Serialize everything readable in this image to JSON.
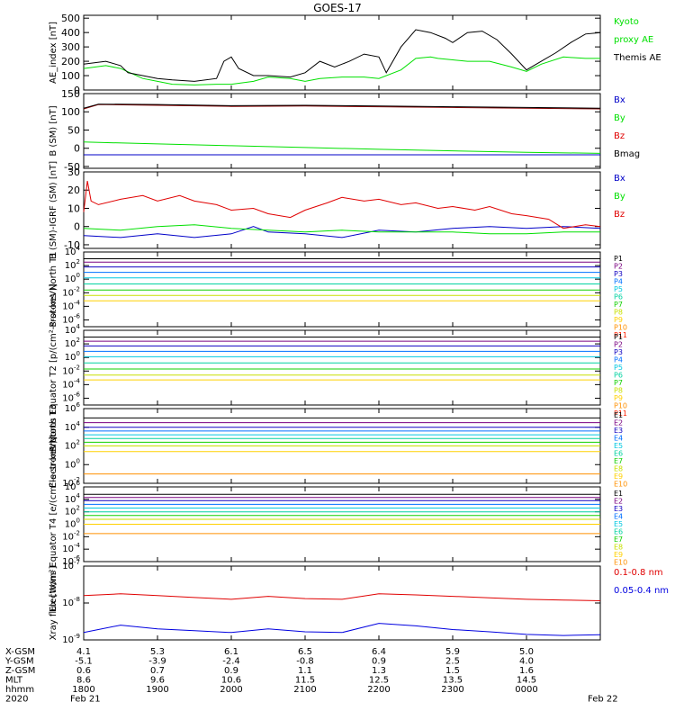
{
  "title": "GOES-17",
  "colors": {
    "black": "#000000",
    "green": "#00e000",
    "blue": "#0000c8",
    "darkred": "#8b0000",
    "red": "#e00000",
    "xray_long": "#e00000",
    "xray_short": "#0000e0",
    "channels": [
      "#000000",
      "#7a0080",
      "#1000c0",
      "#0070ff",
      "#00c8e0",
      "#00d2a0",
      "#10d000",
      "#c8e000",
      "#ffd000",
      "#ff9000",
      "#ff2000",
      "#b00000"
    ]
  },
  "chart_data": [
    {
      "type": "line",
      "ylabel": "AE_index [nT]",
      "ylim": [
        0,
        520
      ],
      "yticks": [
        "0",
        "100",
        "200",
        "300",
        "400",
        "500"
      ],
      "legend": [
        {
          "label": "Kyoto",
          "color": "green"
        },
        {
          "label": "proxy AE",
          "color": "green"
        },
        {
          "label": "Themis AE",
          "color": "black"
        }
      ],
      "series": [
        {
          "name": "Kyoto proxy AE",
          "color": "green",
          "x": [
            0,
            0.3,
            0.5,
            0.8,
            1,
            1.2,
            1.5,
            1.8,
            2,
            2.3,
            2.5,
            2.8,
            3,
            3.2,
            3.5,
            3.8,
            4,
            4.3,
            4.5,
            4.7,
            4.8,
            5,
            5.2,
            5.5,
            5.8,
            6,
            6.2,
            6.5,
            6.8,
            7
          ],
          "values": [
            150,
            170,
            150,
            80,
            60,
            40,
            35,
            40,
            40,
            60,
            90,
            80,
            60,
            80,
            90,
            90,
            80,
            140,
            220,
            230,
            220,
            210,
            200,
            200,
            160,
            130,
            180,
            230,
            220,
            220
          ]
        },
        {
          "name": "Themis AE",
          "color": "black",
          "x": [
            0,
            0.3,
            0.5,
            0.6,
            0.8,
            1,
            1.2,
            1.5,
            1.8,
            1.9,
            2,
            2.1,
            2.3,
            2.5,
            2.8,
            3,
            3.2,
            3.4,
            3.6,
            3.8,
            4,
            4.1,
            4.3,
            4.5,
            4.7,
            4.9,
            5,
            5.2,
            5.4,
            5.6,
            5.8,
            6,
            6.2,
            6.4,
            6.6,
            6.8,
            7
          ],
          "values": [
            180,
            200,
            170,
            120,
            100,
            80,
            70,
            60,
            80,
            200,
            230,
            150,
            100,
            100,
            90,
            120,
            200,
            160,
            200,
            250,
            230,
            120,
            300,
            420,
            400,
            360,
            330,
            400,
            410,
            350,
            250,
            140,
            200,
            260,
            330,
            390,
            400
          ]
        }
      ]
    },
    {
      "type": "line",
      "ylabel": "B (SM) [nT]",
      "ylim": [
        -55,
        150
      ],
      "yticks": [
        "-50",
        "0",
        "50",
        "100",
        "150"
      ],
      "legend": [
        {
          "label": "Bx",
          "color": "blue"
        },
        {
          "label": "By",
          "color": "green"
        },
        {
          "label": "Bz",
          "color": "red"
        },
        {
          "label": "Bmag",
          "color": "black"
        }
      ],
      "series": [
        {
          "name": "Bx",
          "color": "blue",
          "x": [
            0,
            7
          ],
          "values": [
            -18,
            -18
          ]
        },
        {
          "name": "By",
          "color": "green",
          "x": [
            0,
            1,
            2,
            3,
            4,
            5,
            6,
            7
          ],
          "values": [
            17,
            12,
            7,
            2,
            -3,
            -7,
            -11,
            -14
          ]
        },
        {
          "name": "Bz",
          "color": "darkred",
          "x": [
            0,
            0.2,
            1,
            2,
            3,
            4,
            5,
            6,
            7
          ],
          "values": [
            108,
            120,
            118,
            115,
            116,
            114,
            112,
            110,
            108
          ]
        },
        {
          "name": "Bmag",
          "color": "black",
          "x": [
            0,
            0.2,
            1,
            2,
            3,
            4,
            5,
            6,
            7
          ],
          "values": [
            110,
            121,
            120,
            117,
            118,
            116,
            114,
            112,
            110
          ]
        }
      ]
    },
    {
      "type": "line",
      "ylabel": "B (SM)-IGRF (SM) [nT]",
      "ylim": [
        -12,
        30
      ],
      "yticks": [
        "-10",
        "0",
        "10",
        "20",
        "30"
      ],
      "legend": [
        {
          "label": "Bx",
          "color": "blue"
        },
        {
          "label": "By",
          "color": "green"
        },
        {
          "label": "Bz",
          "color": "red"
        }
      ],
      "series": [
        {
          "name": "Bx",
          "color": "blue",
          "x": [
            0,
            0.5,
            1,
            1.5,
            2,
            2.3,
            2.5,
            3,
            3.5,
            4,
            4.5,
            5,
            5.5,
            6,
            6.5,
            7
          ],
          "values": [
            -5,
            -6,
            -4,
            -6,
            -4,
            0,
            -3,
            -4,
            -6,
            -2,
            -3,
            -1,
            0,
            -1,
            0,
            -1
          ]
        },
        {
          "name": "By",
          "color": "green",
          "x": [
            0,
            0.5,
            1,
            1.5,
            2,
            2.5,
            3,
            3.5,
            4,
            4.5,
            5,
            5.5,
            6,
            6.5,
            7
          ],
          "values": [
            -1,
            -2,
            0,
            1,
            -1,
            -2,
            -3,
            -2,
            -3,
            -3,
            -3,
            -4,
            -4,
            -3,
            -3
          ]
        },
        {
          "name": "Bz",
          "color": "red",
          "x": [
            0,
            0.05,
            0.1,
            0.2,
            0.5,
            0.8,
            1,
            1.3,
            1.5,
            1.8,
            2,
            2.3,
            2.5,
            2.8,
            3,
            3.3,
            3.5,
            3.8,
            4,
            4.3,
            4.5,
            4.8,
            5,
            5.3,
            5.5,
            5.8,
            6,
            6.3,
            6.5,
            6.8,
            7
          ],
          "values": [
            8,
            25,
            14,
            12,
            15,
            17,
            14,
            17,
            14,
            12,
            9,
            10,
            7,
            5,
            9,
            13,
            16,
            14,
            15,
            12,
            13,
            10,
            11,
            9,
            11,
            7,
            6,
            4,
            -1,
            1,
            0
          ]
        }
      ]
    },
    {
      "type": "line",
      "ylabel": "Protons North T1",
      "scale": "log",
      "ylim": [
        -7,
        4
      ],
      "yticks": [
        "10^4",
        "10^2",
        "10^0",
        "10^-2",
        "10^-4",
        "10^-6"
      ],
      "legend": [
        "P1",
        "P2",
        "P3",
        "P4",
        "P5",
        "P6",
        "P7",
        "P8",
        "P9",
        "P10",
        "P11"
      ],
      "series": [
        {
          "name": "P1",
          "x": [
            0,
            7
          ],
          "values": [
            3.0,
            3.0
          ]
        },
        {
          "name": "P2",
          "x": [
            0,
            7
          ],
          "values": [
            2.5,
            2.5
          ]
        },
        {
          "name": "P3",
          "x": [
            0,
            7
          ],
          "values": [
            1.8,
            1.8
          ]
        },
        {
          "name": "P4",
          "x": [
            0,
            7
          ],
          "values": [
            1.0,
            1.0
          ]
        },
        {
          "name": "P5",
          "x": [
            0,
            7
          ],
          "values": [
            0.2,
            0.2
          ]
        },
        {
          "name": "P6",
          "x": [
            0,
            7
          ],
          "values": [
            -0.7,
            -0.7
          ]
        },
        {
          "name": "P7",
          "x": [
            0,
            7
          ],
          "values": [
            -1.6,
            -1.6
          ]
        },
        {
          "name": "P8",
          "x": [
            0,
            7
          ],
          "values": [
            -2.4,
            -2.4
          ]
        },
        {
          "name": "P9",
          "x": [
            0,
            7
          ],
          "values": [
            -3.2,
            -3.2
          ]
        }
      ]
    },
    {
      "type": "line",
      "ylabel": "Protons Equator T2 [p/(cm²-s-sr-keV)]",
      "scale": "log",
      "ylim": [
        -7,
        4
      ],
      "yticks": [
        "10^4",
        "10^2",
        "10^0",
        "10^-2",
        "10^-4",
        "10^-6"
      ],
      "legend": [
        "P1",
        "P2",
        "P3",
        "P4",
        "P5",
        "P6",
        "P7",
        "P8",
        "P9",
        "P10",
        "P11"
      ],
      "series": [
        {
          "name": "P1",
          "x": [
            0,
            7
          ],
          "values": [
            3.0,
            3.0
          ]
        },
        {
          "name": "P2",
          "x": [
            0,
            7
          ],
          "values": [
            2.4,
            2.4
          ]
        },
        {
          "name": "P3",
          "x": [
            0,
            7
          ],
          "values": [
            1.7,
            1.7
          ]
        },
        {
          "name": "P4",
          "x": [
            0,
            7
          ],
          "values": [
            0.9,
            0.9
          ]
        },
        {
          "name": "P5",
          "x": [
            0,
            7
          ],
          "values": [
            0.1,
            0.1
          ]
        },
        {
          "name": "P6",
          "x": [
            0,
            7
          ],
          "values": [
            -0.8,
            -0.8
          ]
        },
        {
          "name": "P7",
          "x": [
            0,
            7
          ],
          "values": [
            -1.7,
            -1.7
          ]
        },
        {
          "name": "P8",
          "x": [
            0,
            7
          ],
          "values": [
            -2.6,
            -2.6
          ]
        },
        {
          "name": "P9",
          "x": [
            0,
            7
          ],
          "values": [
            -3.3,
            -3.3
          ]
        }
      ]
    },
    {
      "type": "line",
      "ylabel": "Electrons North T3",
      "scale": "log",
      "ylim": [
        -2,
        6
      ],
      "yticks": [
        "10^6",
        "10^4",
        "10^2",
        "10^0",
        "10^-2"
      ],
      "legend": [
        "E1",
        "E2",
        "E3",
        "E4",
        "E5",
        "E6",
        "E7",
        "E8",
        "E9",
        "E10"
      ],
      "series": [
        {
          "name": "E1",
          "x": [
            0,
            7
          ],
          "values": [
            5.0,
            5.0
          ]
        },
        {
          "name": "E2",
          "x": [
            0,
            7
          ],
          "values": [
            4.5,
            4.5
          ]
        },
        {
          "name": "E3",
          "x": [
            0,
            7
          ],
          "values": [
            4.0,
            4.0
          ]
        },
        {
          "name": "E4",
          "x": [
            0,
            7
          ],
          "values": [
            3.6,
            3.6
          ]
        },
        {
          "name": "E5",
          "x": [
            0,
            7
          ],
          "values": [
            3.2,
            3.2
          ]
        },
        {
          "name": "E6",
          "x": [
            0,
            7
          ],
          "values": [
            2.8,
            2.8
          ]
        },
        {
          "name": "E7",
          "x": [
            0,
            7
          ],
          "values": [
            2.4,
            2.4
          ]
        },
        {
          "name": "E8",
          "x": [
            0,
            7
          ],
          "values": [
            2.0,
            2.0
          ]
        },
        {
          "name": "E9",
          "x": [
            0,
            7
          ],
          "values": [
            1.4,
            1.4
          ]
        },
        {
          "name": "E10",
          "x": [
            0,
            7
          ],
          "values": [
            -1.0,
            -1.0
          ]
        }
      ]
    },
    {
      "type": "line",
      "ylabel": "Electrons Equator T4 [e/(cm²-s-sr-keV)]",
      "scale": "log",
      "ylim": [
        -6,
        6
      ],
      "yticks": [
        "10^6",
        "10^4",
        "10^2",
        "10^0",
        "10^-2",
        "10^-4",
        "10^-6"
      ],
      "legend": [
        "E1",
        "E2",
        "E3",
        "E4",
        "E5",
        "E6",
        "E7",
        "E8",
        "E9",
        "E10"
      ],
      "series": [
        {
          "name": "E1",
          "x": [
            0,
            7
          ],
          "values": [
            4.8,
            4.8
          ]
        },
        {
          "name": "E2",
          "x": [
            0,
            7
          ],
          "values": [
            4.3,
            4.3
          ]
        },
        {
          "name": "E3",
          "x": [
            0,
            7
          ],
          "values": [
            3.8,
            3.8
          ]
        },
        {
          "name": "E4",
          "x": [
            0,
            7
          ],
          "values": [
            3.2,
            3.2
          ]
        },
        {
          "name": "E5",
          "x": [
            0,
            7
          ],
          "values": [
            2.6,
            2.6
          ]
        },
        {
          "name": "E6",
          "x": [
            0,
            7
          ],
          "values": [
            2.0,
            2.0
          ]
        },
        {
          "name": "E7",
          "x": [
            0,
            7
          ],
          "values": [
            1.4,
            1.4
          ]
        },
        {
          "name": "E8",
          "x": [
            0,
            7
          ],
          "values": [
            0.8,
            0.8
          ]
        },
        {
          "name": "E9",
          "x": [
            0,
            7
          ],
          "values": [
            0.0,
            0.0
          ]
        },
        {
          "name": "E10",
          "x": [
            0,
            7
          ],
          "values": [
            -1.5,
            -1.5
          ]
        }
      ]
    },
    {
      "type": "line",
      "ylabel": "Xray flux [W/m²]",
      "scale": "log",
      "ylim": [
        -9,
        -7
      ],
      "yticks": [
        "10^-7",
        "10^-8",
        "10^-9"
      ],
      "legend": [
        {
          "label": "0.1-0.8 nm",
          "color": "xray_long"
        },
        {
          "label": "0.05-0.4 nm",
          "color": "xray_short"
        }
      ],
      "series": [
        {
          "name": "0.1-0.8 nm",
          "color": "xray_long",
          "x": [
            0,
            0.5,
            1,
            1.5,
            2,
            2.5,
            3,
            3.5,
            4,
            4.5,
            5,
            5.5,
            6,
            6.5,
            7
          ],
          "values": [
            -7.8,
            -7.75,
            -7.8,
            -7.85,
            -7.9,
            -7.82,
            -7.88,
            -7.9,
            -7.75,
            -7.78,
            -7.82,
            -7.86,
            -7.9,
            -7.92,
            -7.94
          ]
        },
        {
          "name": "0.05-0.4 nm",
          "color": "xray_short",
          "x": [
            0,
            0.5,
            1,
            1.5,
            2,
            2.5,
            3,
            3.5,
            4,
            4.5,
            5,
            5.5,
            6,
            6.5,
            7
          ],
          "values": [
            -8.8,
            -8.6,
            -8.7,
            -8.75,
            -8.8,
            -8.7,
            -8.78,
            -8.8,
            -8.55,
            -8.62,
            -8.72,
            -8.78,
            -8.85,
            -8.88,
            -8.86
          ]
        }
      ]
    }
  ],
  "x_axis": {
    "rows": [
      {
        "label": "X-GSM",
        "values": [
          "4.1",
          "5.3",
          "6.1",
          "6.5",
          "6.4",
          "5.9",
          "5.0"
        ]
      },
      {
        "label": "Y-GSM",
        "values": [
          "-5.1",
          "-3.9",
          "-2.4",
          "-0.8",
          "0.9",
          "2.5",
          "4.0"
        ]
      },
      {
        "label": "Z-GSM",
        "values": [
          "0.6",
          "0.7",
          "0.9",
          "1.1",
          "1.3",
          "1.5",
          "1.6"
        ]
      },
      {
        "label": "MLT",
        "values": [
          "8.6",
          "9.6",
          "10.6",
          "11.5",
          "12.5",
          "13.5",
          "14.5"
        ]
      },
      {
        "label": "hhmm",
        "values": [
          "1800",
          "1900",
          "2000",
          "2100",
          "2200",
          "2300",
          "0000"
        ]
      }
    ],
    "year": "2020",
    "date_start": "Feb 21",
    "date_end": "Feb 22"
  }
}
